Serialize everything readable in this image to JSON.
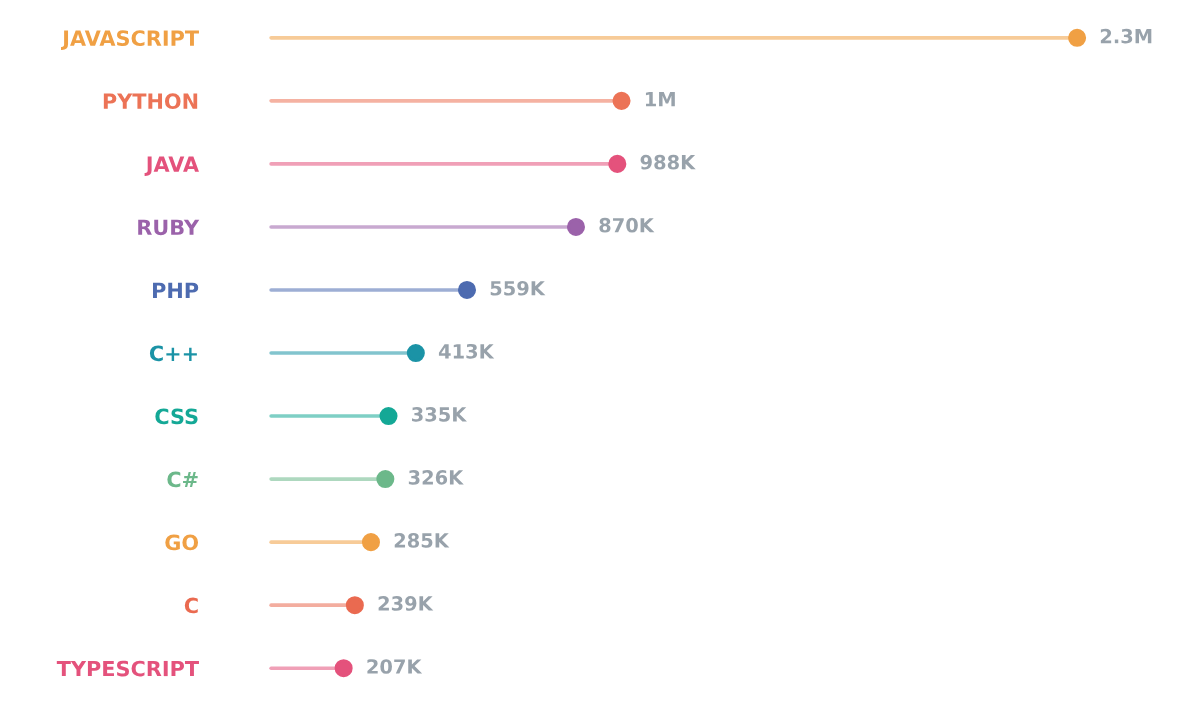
{
  "chart_data": {
    "type": "lollipop",
    "orientation": "horizontal",
    "categories": [
      "JAVASCRIPT",
      "PYTHON",
      "JAVA",
      "RUBY",
      "PHP",
      "C++",
      "CSS",
      "C#",
      "GO",
      "C",
      "TYPESCRIPT"
    ],
    "values": [
      2300000,
      1000000,
      988000,
      870000,
      559000,
      413000,
      335000,
      326000,
      285000,
      239000,
      207000
    ],
    "value_labels": [
      "2.3M",
      "1M",
      "988K",
      "870K",
      "559K",
      "413K",
      "335K",
      "326K",
      "285K",
      "239K",
      "207K"
    ],
    "colors": [
      "#f0a044",
      "#ec7356",
      "#e4527c",
      "#9b62aa",
      "#4d6bb0",
      "#1b93a6",
      "#14a896",
      "#6cb88a",
      "#f0a044",
      "#ea6a50",
      "#e4527c"
    ],
    "marker": "circle",
    "tick_labels": "y"
  }
}
